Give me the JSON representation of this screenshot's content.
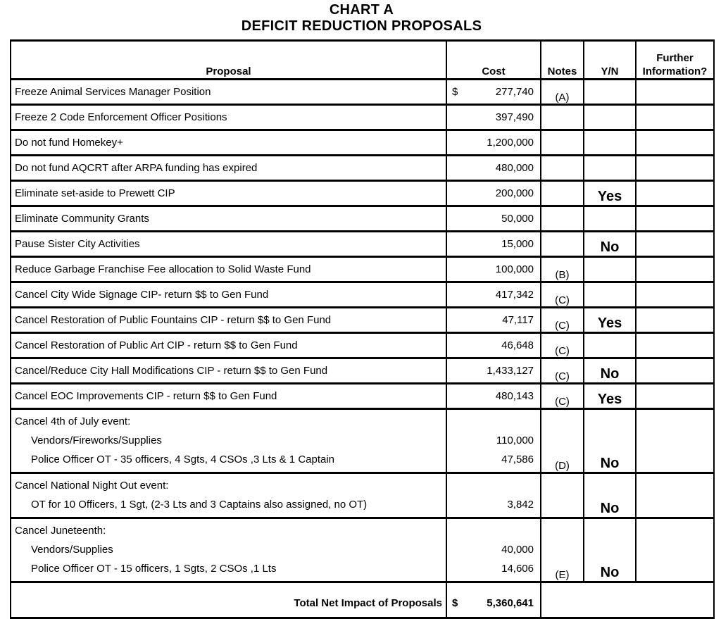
{
  "title": {
    "line1": "CHART A",
    "line2": "DEFICIT REDUCTION PROPOSALS"
  },
  "table": {
    "headers": {
      "proposal": "Proposal",
      "cost": "Cost",
      "notes": "Notes",
      "yn": "Y/N",
      "further": "Further Information?"
    },
    "rows": [
      {
        "lines": [
          {
            "text": "Freeze Animal Services Manager Position",
            "indent": false,
            "cost": "277,740"
          }
        ],
        "dollar": "$",
        "note": "(A)",
        "yn": ""
      },
      {
        "lines": [
          {
            "text": "Freeze 2 Code Enforcement Officer Positions",
            "indent": false,
            "cost": "397,490"
          }
        ],
        "dollar": "",
        "note": "",
        "yn": ""
      },
      {
        "lines": [
          {
            "text": "Do not fund Homekey+",
            "indent": false,
            "cost": "1,200,000"
          }
        ],
        "dollar": "",
        "note": "",
        "yn": ""
      },
      {
        "lines": [
          {
            "text": "Do not fund AQCRT after ARPA funding has expired",
            "indent": false,
            "cost": "480,000"
          }
        ],
        "dollar": "",
        "note": "",
        "yn": ""
      },
      {
        "lines": [
          {
            "text": "Eliminate set-aside to Prewett CIP",
            "indent": false,
            "cost": "200,000"
          }
        ],
        "dollar": "",
        "note": "",
        "yn": "Yes"
      },
      {
        "lines": [
          {
            "text": "Eliminate Community Grants",
            "indent": false,
            "cost": "50,000"
          }
        ],
        "dollar": "",
        "note": "",
        "yn": ""
      },
      {
        "lines": [
          {
            "text": "Pause Sister City Activities",
            "indent": false,
            "cost": "15,000"
          }
        ],
        "dollar": "",
        "note": "",
        "yn": "No"
      },
      {
        "lines": [
          {
            "text": "Reduce Garbage Franchise Fee allocation to Solid Waste Fund",
            "indent": false,
            "cost": "100,000"
          }
        ],
        "dollar": "",
        "note": "(B)",
        "yn": ""
      },
      {
        "lines": [
          {
            "text": "Cancel City Wide Signage CIP- return $$ to Gen Fund",
            "indent": false,
            "cost": "417,342"
          }
        ],
        "dollar": "",
        "note": "(C)",
        "yn": ""
      },
      {
        "lines": [
          {
            "text": "Cancel Restoration of Public Fountains CIP - return $$ to Gen Fund",
            "indent": false,
            "cost": "47,117"
          }
        ],
        "dollar": "",
        "note": "(C)",
        "yn": "Yes"
      },
      {
        "lines": [
          {
            "text": "Cancel Restoration of Public Art CIP - return $$ to Gen Fund",
            "indent": false,
            "cost": "46,648"
          }
        ],
        "dollar": "",
        "note": "(C)",
        "yn": ""
      },
      {
        "lines": [
          {
            "text": "Cancel/Reduce City Hall Modifications CIP - return $$ to Gen Fund",
            "indent": false,
            "cost": "1,433,127"
          }
        ],
        "dollar": "",
        "note": "(C)",
        "yn": "No"
      },
      {
        "lines": [
          {
            "text": "Cancel EOC Improvements CIP - return $$ to Gen Fund",
            "indent": false,
            "cost": "480,143"
          }
        ],
        "dollar": "",
        "note": "(C)",
        "yn": "Yes"
      },
      {
        "lines": [
          {
            "text": "Cancel 4th of July event:",
            "indent": false,
            "cost": ""
          },
          {
            "text": "Vendors/Fireworks/Supplies",
            "indent": true,
            "cost": "110,000"
          },
          {
            "text": "Police Officer OT - 35 officers, 4 Sgts, 4 CSOs ,3 Lts & 1 Captain",
            "indent": true,
            "cost": "47,586"
          }
        ],
        "dollar": "",
        "note": "(D)",
        "yn": "No"
      },
      {
        "lines": [
          {
            "text": "Cancel National Night Out event:",
            "indent": false,
            "cost": ""
          },
          {
            "text": "OT for 10 Officers, 1 Sgt, (2-3 Lts and 3 Captains also assigned, no OT)",
            "indent": true,
            "cost": "3,842"
          }
        ],
        "dollar": "",
        "note": "",
        "yn": "No"
      },
      {
        "lines": [
          {
            "text": "Cancel Juneteenth:",
            "indent": false,
            "cost": ""
          },
          {
            "text": "Vendors/Supplies",
            "indent": true,
            "cost": "40,000"
          },
          {
            "text": "Police Officer OT - 15 officers, 1 Sgts, 2 CSOs ,1 Lts",
            "indent": true,
            "cost": "14,606"
          }
        ],
        "dollar": "",
        "note": "(E)",
        "yn": "No"
      }
    ],
    "total": {
      "label": "Total Net Impact of Proposals",
      "dollar": "$",
      "value": "5,360,641"
    }
  }
}
